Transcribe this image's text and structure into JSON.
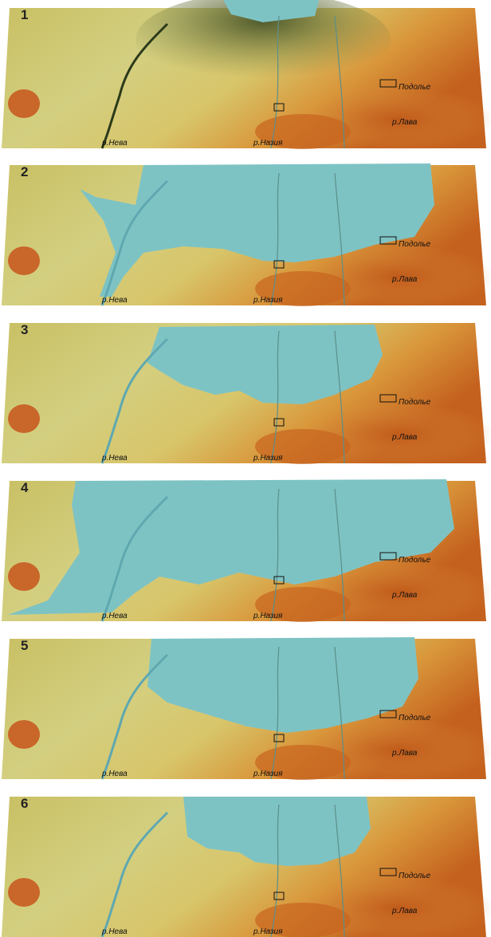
{
  "panels": [
    {
      "number": "1",
      "labels": {
        "neva": "р.Нева",
        "nazia": "р.Назия",
        "podolye": "Подолье",
        "lava": "р.Лава"
      }
    },
    {
      "number": "2",
      "labels": {
        "neva": "р.Нева",
        "nazia": "р.Назия",
        "podolye": "Подолье",
        "lava": "р.Лава"
      }
    },
    {
      "number": "3",
      "labels": {
        "neva": "р.Нева",
        "nazia": "р.Назия",
        "podolye": "Подолье",
        "lava": "р.Лава"
      }
    },
    {
      "number": "4",
      "labels": {
        "neva": "р.Нева",
        "nazia": "р.Назия",
        "podolye": "Подолье",
        "lava": "р.Лава"
      }
    },
    {
      "number": "5",
      "labels": {
        "neva": "р.Нева",
        "nazia": "р.Назия",
        "podolye": "Подолье",
        "lava": "р.Лава"
      }
    },
    {
      "number": "6",
      "labels": {
        "neva": "р.Нева",
        "nazia": "р.Назия",
        "podolye": "Подолье",
        "lava": "р.Лава"
      }
    }
  ]
}
